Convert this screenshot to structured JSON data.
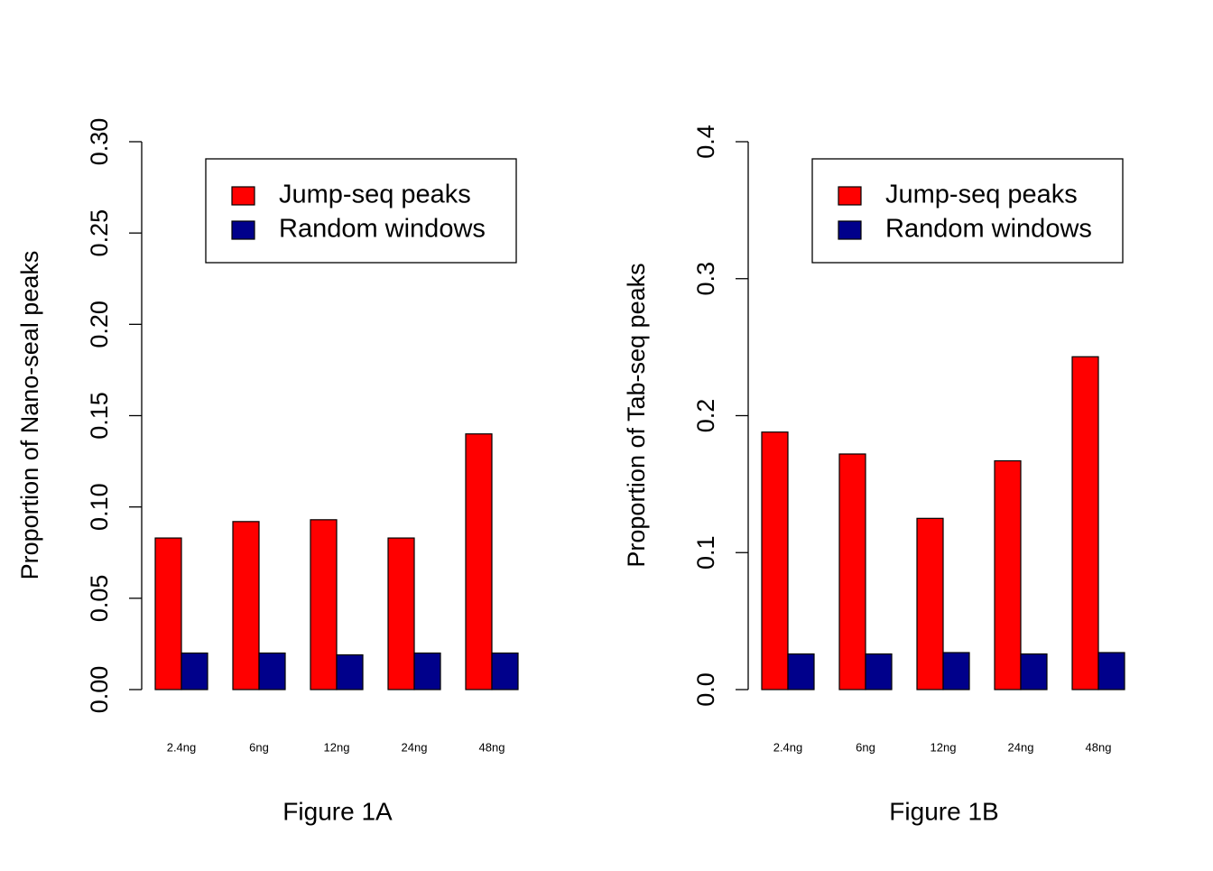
{
  "chart_data": [
    {
      "type": "bar",
      "xlabel": "Figure 1A",
      "ylabel": "Proportion of Nano-seal peaks",
      "ylim": [
        0,
        0.3
      ],
      "yticks": [
        "0.00",
        "0.05",
        "0.10",
        "0.15",
        "0.20",
        "0.25",
        "0.30"
      ],
      "categories": [
        "2.4ng",
        "6ng",
        "12ng",
        "24ng",
        "48ng"
      ],
      "series": [
        {
          "name": "Jump-seq peaks",
          "color": "#ff0000",
          "values": [
            0.083,
            0.092,
            0.093,
            0.083,
            0.14
          ]
        },
        {
          "name": "Random windows",
          "color": "#00008b",
          "values": [
            0.02,
            0.02,
            0.019,
            0.02,
            0.02
          ]
        }
      ],
      "legend_position": "top-right",
      "grid": false
    },
    {
      "type": "bar",
      "xlabel": "Figure 1B",
      "ylabel": "Proportion of Tab-seq peaks",
      "ylim": [
        0,
        0.4
      ],
      "yticks": [
        "0.0",
        "0.1",
        "0.2",
        "0.3",
        "0.4"
      ],
      "categories": [
        "2.4ng",
        "6ng",
        "12ng",
        "24ng",
        "48ng"
      ],
      "series": [
        {
          "name": "Jump-seq peaks",
          "color": "#ff0000",
          "values": [
            0.188,
            0.172,
            0.125,
            0.167,
            0.243
          ]
        },
        {
          "name": "Random windows",
          "color": "#00008b",
          "values": [
            0.026,
            0.026,
            0.027,
            0.026,
            0.027
          ]
        }
      ],
      "legend_position": "top-right",
      "grid": false
    }
  ]
}
